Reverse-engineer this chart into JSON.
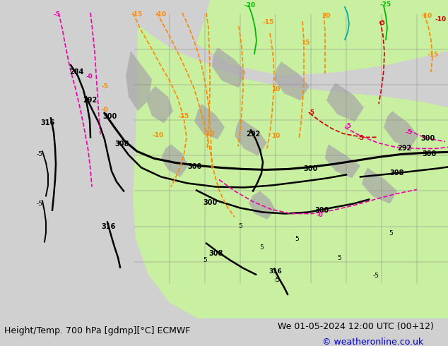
{
  "title_left": "Height/Temp. 700 hPa [gdmp][°C] ECMWF",
  "title_right": "We 01-05-2024 12:00 UTC (00+12)",
  "copyright": "© weatheronline.co.uk",
  "bg_color": "#d0d0d0",
  "land_color": "#c8c8c8",
  "green_color": "#c8f0a0",
  "figsize": [
    6.34,
    4.9
  ],
  "dpi": 100
}
